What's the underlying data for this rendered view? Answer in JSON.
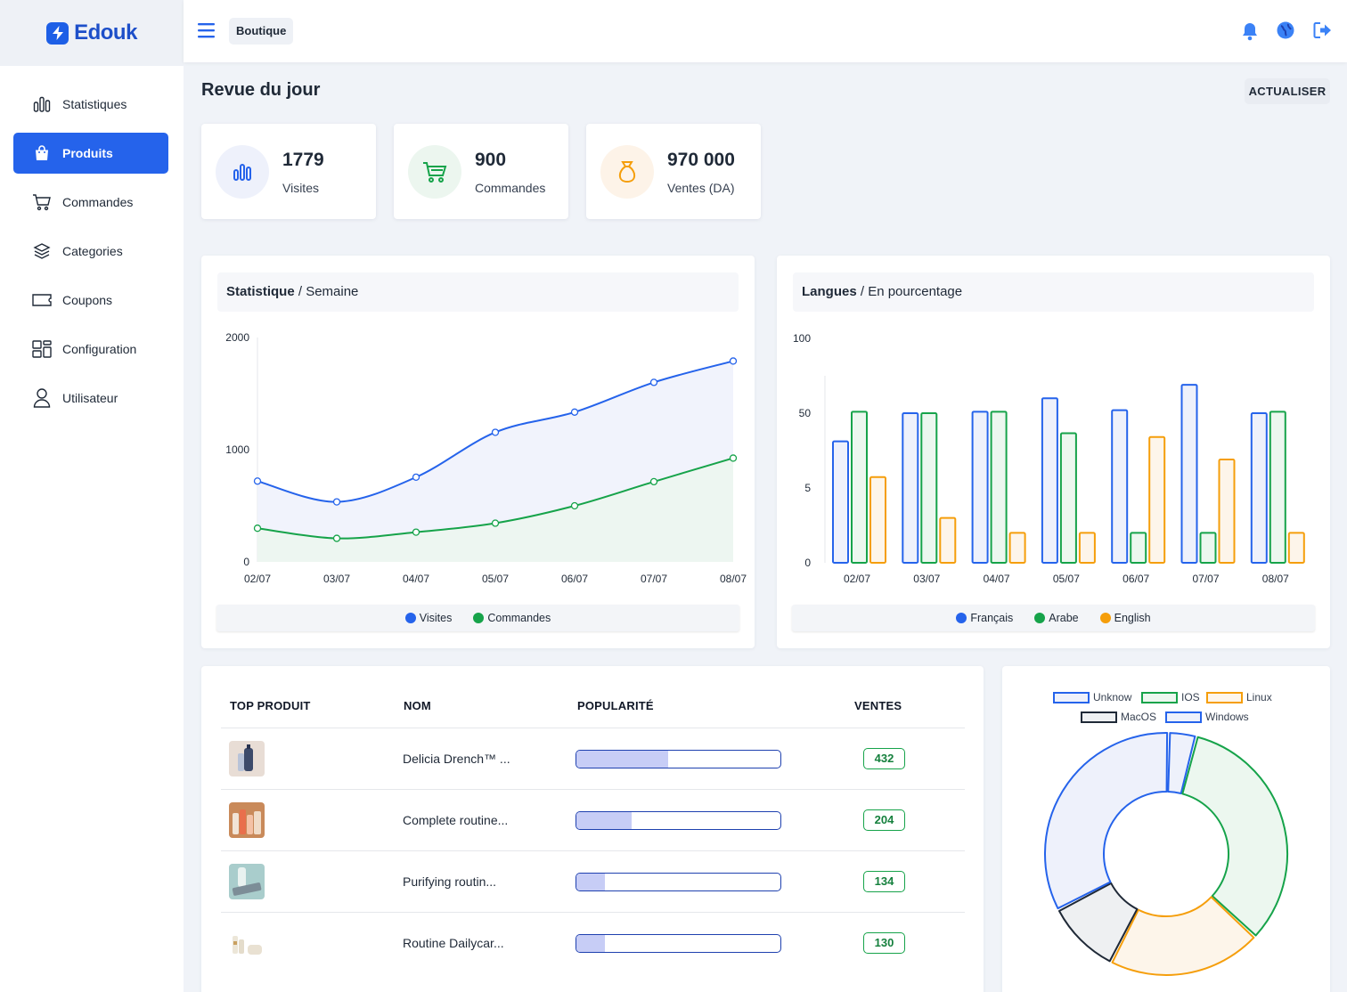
{
  "brand": {
    "name": "Edouk",
    "accent": "#2563eb"
  },
  "sidebar": {
    "items": [
      {
        "label": "Statistiques",
        "icon": "bar-chart-icon",
        "active": false
      },
      {
        "label": "Produits",
        "icon": "shopping-bag-icon",
        "active": true
      },
      {
        "label": "Commandes",
        "icon": "cart-icon",
        "active": false
      },
      {
        "label": "Categories",
        "icon": "layers-icon",
        "active": false
      },
      {
        "label": "Coupons",
        "icon": "coupon-icon",
        "active": false
      },
      {
        "label": "Configuration",
        "icon": "layout-icon",
        "active": false
      },
      {
        "label": "Utilisateur",
        "icon": "user-icon",
        "active": false
      }
    ]
  },
  "topbar": {
    "breadcrumb": "Boutique",
    "icons": [
      "bell-icon",
      "globe-icon",
      "logout-icon"
    ]
  },
  "page": {
    "title": "Revue du jour",
    "refresh_label": "ACTUALISER"
  },
  "stats": [
    {
      "value": "1779",
      "label": "Visites",
      "icon": "bar-chart-icon",
      "color": "#2563eb"
    },
    {
      "value": "900",
      "label": "Commandes",
      "icon": "cart-icon",
      "color": "#16a34a"
    },
    {
      "value": "970 000",
      "label": "Ventes (DA)",
      "icon": "money-bag-icon",
      "color": "#f59e0b"
    }
  ],
  "weekly_chart": {
    "title_bold": "Statistique",
    "title_rest": " / Semaine"
  },
  "lang_chart": {
    "title_bold": "Langues",
    "title_rest": " / En pourcentage"
  },
  "table": {
    "headers": [
      "TOP PRODUIT",
      "NOM",
      "POPULARITÉ",
      "VENTES"
    ],
    "rows": [
      {
        "name": "Delicia Drench™ ...",
        "sales": "432",
        "popularity": 0.45
      },
      {
        "name": "Complete routine...",
        "sales": "204",
        "popularity": 0.27
      },
      {
        "name": "Purifying routin...",
        "sales": "134",
        "popularity": 0.14
      },
      {
        "name": "Routine Dailycar...",
        "sales": "130",
        "popularity": 0.14
      }
    ]
  },
  "chart_data": [
    {
      "type": "area",
      "title": "Statistique / Semaine",
      "categories": [
        "02/07",
        "03/07",
        "04/07",
        "05/07",
        "06/07",
        "07/07",
        "08/07"
      ],
      "ylim": [
        0,
        2000
      ],
      "yticks": [
        "2000",
        "1000",
        "0"
      ],
      "series": [
        {
          "name": "Visites",
          "color": "#2563eb",
          "values": [
            720,
            535,
            755,
            1155,
            1335,
            1600,
            1790
          ]
        },
        {
          "name": "Commandes",
          "color": "#16a34a",
          "values": [
            300,
            210,
            265,
            345,
            500,
            715,
            925
          ]
        }
      ],
      "legend": "bottom"
    },
    {
      "type": "bar",
      "title": "Langues / En pourcentage",
      "categories": [
        "02/07",
        "03/07",
        "04/07",
        "05/07",
        "06/07",
        "07/07",
        "08/07"
      ],
      "yticks": [
        "100",
        "50",
        "5",
        "0"
      ],
      "series": [
        {
          "name": "Français",
          "color": "#2563eb",
          "values": [
            21,
            50,
            51,
            60,
            52,
            69,
            50
          ]
        },
        {
          "name": "Arabe",
          "color": "#16a34a",
          "values": [
            51,
            50,
            51,
            27,
            2,
            2,
            51
          ]
        },
        {
          "name": "English",
          "color": "#f59e0b",
          "values": [
            7,
            3,
            2,
            2,
            24,
            12,
            2
          ]
        }
      ],
      "legend": "bottom"
    },
    {
      "type": "pie",
      "labels": [
        "Unknow",
        "IOS",
        "Linux",
        "MacOS",
        "Windows"
      ],
      "colors": [
        "#2563eb",
        "#16a34a",
        "#f59e0b",
        "#1f2937",
        "#2563eb"
      ],
      "values": [
        4,
        4,
        2.5,
        1.2,
        0.45
      ],
      "ordered_display": [
        "Windows",
        "IOS",
        "Linux",
        "MacOS",
        "Unknow"
      ],
      "legend": "top"
    }
  ]
}
